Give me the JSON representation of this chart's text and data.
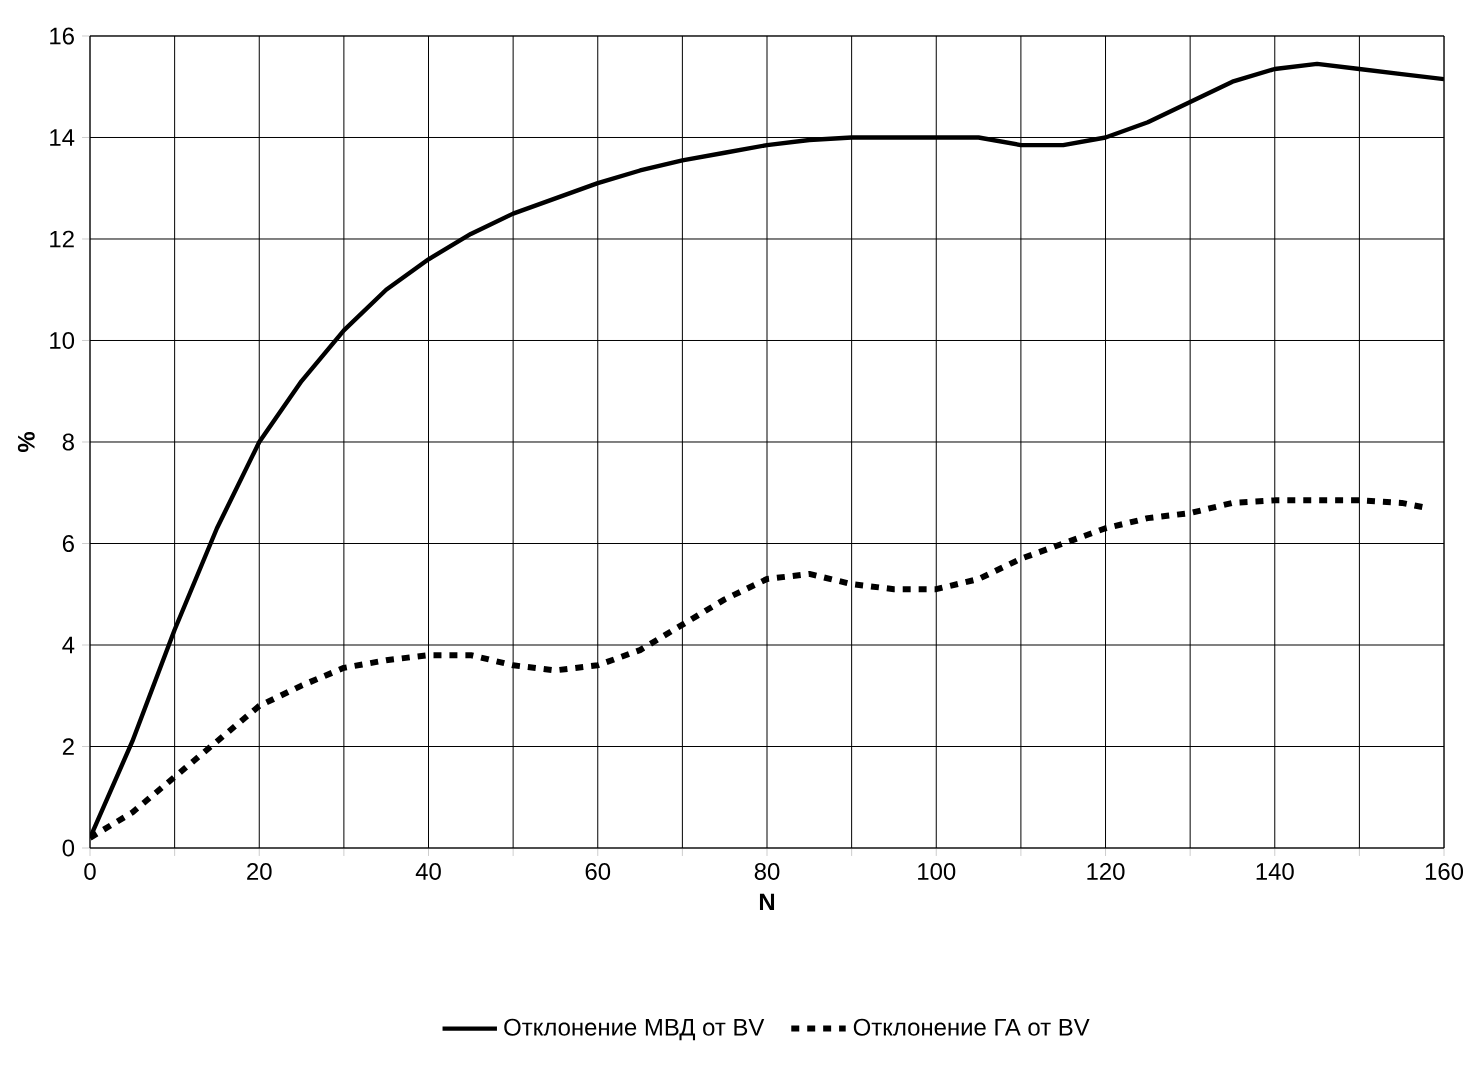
{
  "chart_data": {
    "type": "line",
    "xlabel": "N",
    "ylabel": "%",
    "xlim": [
      0,
      160
    ],
    "ylim": [
      0,
      16
    ],
    "xticks": [
      0,
      {
        "value": 10,
        "label": null
      },
      20,
      {
        "value": 30,
        "label": null
      },
      40,
      {
        "value": 50,
        "label": null
      },
      60,
      {
        "value": 70,
        "label": null
      },
      80,
      {
        "value": 90,
        "label": null
      },
      100,
      {
        "value": 110,
        "label": null
      },
      120,
      {
        "value": 130,
        "label": null
      },
      140,
      {
        "value": 150,
        "label": null
      },
      160
    ],
    "yticks": [
      0,
      2,
      4,
      6,
      8,
      10,
      12,
      14,
      16
    ],
    "grid": true,
    "legend": "bottom",
    "marker": "none",
    "series": [
      {
        "name": "Отклонение МВД от BV",
        "color": "#000000",
        "line_style": "solid",
        "x": [
          0,
          5,
          10,
          15,
          20,
          25,
          30,
          35,
          40,
          45,
          50,
          55,
          60,
          65,
          70,
          75,
          80,
          85,
          90,
          95,
          100,
          105,
          110,
          115,
          120,
          125,
          130,
          135,
          140,
          145,
          150,
          155,
          160
        ],
        "values": [
          0.2,
          2.1,
          4.3,
          6.3,
          8.0,
          9.2,
          10.2,
          11.0,
          11.6,
          12.1,
          12.5,
          12.8,
          13.1,
          13.35,
          13.55,
          13.7,
          13.85,
          13.95,
          14.0,
          14.0,
          14.0,
          14.0,
          13.85,
          13.85,
          14.0,
          14.3,
          14.7,
          15.1,
          15.35,
          15.45,
          15.35,
          15.25,
          15.15
        ]
      },
      {
        "name": "Отклонение ГА от BV",
        "color": "#000000",
        "line_style": "dashed",
        "x": [
          0,
          5,
          10,
          15,
          20,
          25,
          30,
          35,
          40,
          45,
          50,
          55,
          60,
          65,
          70,
          75,
          80,
          85,
          90,
          95,
          100,
          105,
          110,
          115,
          120,
          125,
          130,
          135,
          140,
          145,
          150,
          155,
          158
        ],
        "values": [
          0.2,
          0.7,
          1.4,
          2.1,
          2.8,
          3.2,
          3.55,
          3.7,
          3.8,
          3.8,
          3.6,
          3.5,
          3.6,
          3.9,
          4.4,
          4.9,
          5.3,
          5.4,
          5.2,
          5.1,
          5.1,
          5.3,
          5.7,
          6.0,
          6.3,
          6.5,
          6.6,
          6.8,
          6.85,
          6.85,
          6.85,
          6.8,
          6.7
        ]
      }
    ]
  }
}
